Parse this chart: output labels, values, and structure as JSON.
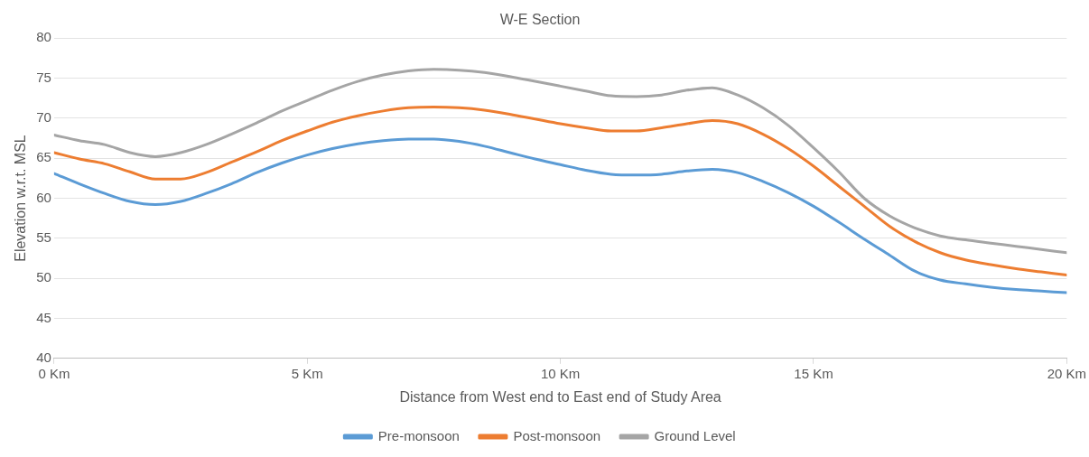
{
  "chart_data": {
    "type": "line",
    "title": "W-E Section",
    "xlabel": "Distance from West end to East end of Study Area",
    "ylabel": "Elevation w.r.t. MSL",
    "x": [
      0,
      0.5,
      1,
      1.5,
      2,
      2.5,
      3,
      3.5,
      4,
      4.5,
      5,
      5.5,
      6,
      6.5,
      7,
      7.5,
      8,
      8.5,
      9,
      9.5,
      10,
      10.5,
      11,
      11.5,
      12,
      12.5,
      13,
      13.5,
      14,
      14.5,
      15,
      15.5,
      16,
      16.5,
      17,
      17.5,
      18,
      18.5,
      19,
      19.5,
      20
    ],
    "series": [
      {
        "name": "Pre-monsoon",
        "color": "#5b9bd5",
        "values": [
          63.1,
          61.8,
          60.6,
          59.6,
          59.2,
          59.6,
          60.6,
          61.8,
          63.2,
          64.4,
          65.4,
          66.2,
          66.8,
          67.2,
          67.4,
          67.4,
          67.1,
          66.5,
          65.7,
          64.9,
          64.2,
          63.5,
          63.0,
          62.9,
          63.0,
          63.4,
          63.6,
          63.2,
          62.1,
          60.7,
          59.0,
          57.0,
          54.9,
          52.9,
          50.9,
          49.8,
          49.3,
          48.9,
          48.6,
          48.4,
          48.2
        ]
      },
      {
        "name": "Post-monsoon",
        "color": "#ed7d31",
        "values": [
          65.7,
          64.9,
          64.3,
          63.3,
          62.4,
          62.4,
          63.2,
          64.5,
          65.8,
          67.2,
          68.4,
          69.5,
          70.3,
          70.9,
          71.3,
          71.4,
          71.3,
          71.0,
          70.5,
          69.9,
          69.3,
          68.8,
          68.4,
          68.4,
          68.8,
          69.3,
          69.7,
          69.3,
          68.0,
          66.2,
          64.0,
          61.5,
          59.0,
          56.5,
          54.6,
          53.2,
          52.3,
          51.7,
          51.2,
          50.8,
          50.4
        ]
      },
      {
        "name": "Ground Level",
        "color": "#a5a5a5",
        "values": [
          67.9,
          67.2,
          66.7,
          65.7,
          65.2,
          65.7,
          66.7,
          68.0,
          69.4,
          70.9,
          72.2,
          73.5,
          74.6,
          75.4,
          75.9,
          76.1,
          76.0,
          75.7,
          75.2,
          74.6,
          74.0,
          73.4,
          72.8,
          72.7,
          72.9,
          73.5,
          73.8,
          72.9,
          71.3,
          69.1,
          66.3,
          63.3,
          60.0,
          57.8,
          56.3,
          55.3,
          54.8,
          54.4,
          54.0,
          53.6,
          53.2
        ]
      }
    ],
    "xlim": [
      0,
      20
    ],
    "xticks": [
      {
        "value": 0,
        "label": "0 Km"
      },
      {
        "value": 5,
        "label": "5 Km"
      },
      {
        "value": 10,
        "label": "10 Km"
      },
      {
        "value": 15,
        "label": "15 Km"
      },
      {
        "value": 20,
        "label": "20 Km"
      }
    ],
    "ylim": [
      40,
      80
    ],
    "yticks": [
      40,
      45,
      50,
      55,
      60,
      65,
      70,
      75,
      80
    ],
    "grid": "y",
    "legend": "bottom",
    "marker": "none",
    "line_style": "solid"
  }
}
